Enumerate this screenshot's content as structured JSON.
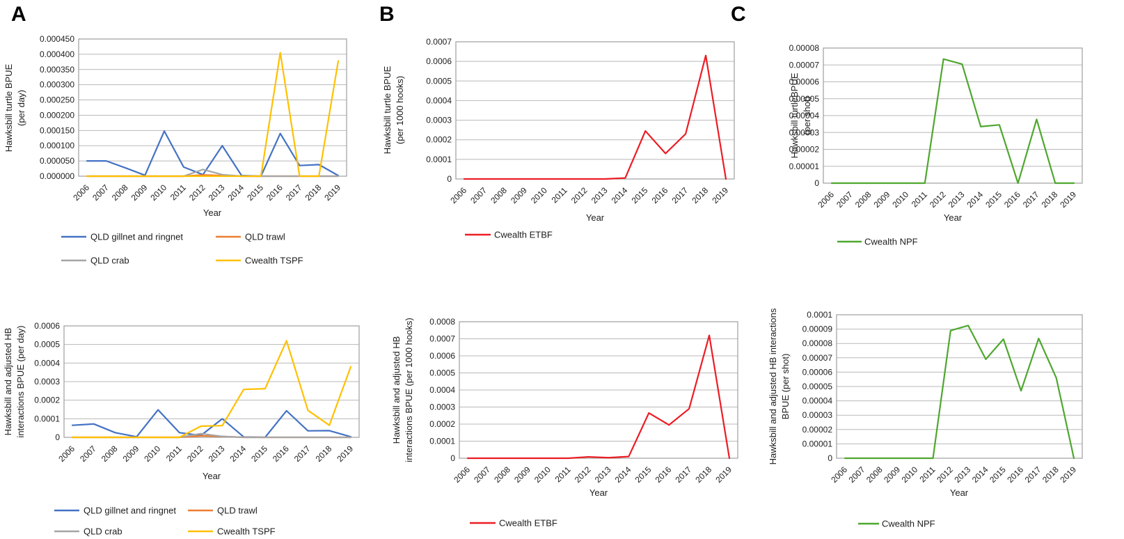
{
  "panel_labels": [
    "A",
    "B",
    "C"
  ],
  "colors": {
    "qld_gillnet_blue": "#4472C4",
    "qld_trawl_orange": "#ED7D31",
    "qld_crab_gray": "#A5A5A5",
    "cwealth_tspf_yellow": "#FFC000",
    "cwealth_etbf_red": "#EC1C24",
    "cwealth_npf_green": "#4EA72E",
    "gridline": "#b8b8b8",
    "plot_border": "#9e9e9e",
    "text": "#1c1c1c"
  },
  "chart_data": [
    {
      "id": "a-top",
      "panel": "A",
      "type": "line",
      "ylabel_lines": [
        "Hawksbill turtle BPUE",
        "(per day)"
      ],
      "xlabel": "Year",
      "categories": [
        "2006",
        "2007",
        "2008",
        "2009",
        "2010",
        "2011",
        "2012",
        "2013",
        "2014",
        "2015",
        "2016",
        "2017",
        "2018",
        "2019"
      ],
      "ylim": [
        0,
        0.00045
      ],
      "ytick_labels": [
        "0.000450",
        "0.000400",
        "0.000350",
        "0.000300",
        "0.000250",
        "0.000200",
        "0.000150",
        "0.000100",
        "0.000050",
        "0.000000"
      ],
      "grid": true,
      "legend_position": "bottom",
      "series": [
        {
          "name": "QLD gillnet and ringnet",
          "color": "#4472C4",
          "values": [
            5e-05,
            5e-05,
            2.7e-05,
            3e-06,
            0.000148,
            3e-05,
            5e-06,
            0.0001,
            2e-06,
            0,
            0.00014,
            3.5e-05,
            3.8e-05,
            2e-06
          ]
        },
        {
          "name": "QLD trawl",
          "color": "#ED7D31",
          "values": [
            0,
            0,
            0,
            0,
            0,
            0,
            4e-06,
            2e-06,
            0,
            0,
            0,
            0,
            0,
            0
          ]
        },
        {
          "name": "QLD crab",
          "color": "#A5A5A5",
          "values": [
            0,
            0,
            0,
            0,
            0,
            0,
            2.2e-05,
            5e-06,
            0,
            0,
            0,
            0,
            0,
            0
          ]
        },
        {
          "name": "Cwealth TSPF",
          "color": "#FFC000",
          "values": [
            0,
            0,
            0,
            0,
            0,
            0,
            0,
            0,
            0,
            0,
            0.000405,
            0,
            0,
            0.000378
          ]
        }
      ]
    },
    {
      "id": "a-bottom",
      "panel": "A",
      "type": "line",
      "ylabel_lines": [
        "Hawksbill and adjusted HB",
        "interactions BPUE (per day)"
      ],
      "xlabel": "Year",
      "categories": [
        "2006",
        "2007",
        "2008",
        "2009",
        "2010",
        "2011",
        "2012",
        "2013",
        "2014",
        "2015",
        "2016",
        "2017",
        "2018",
        "2019"
      ],
      "ylim": [
        0,
        0.0006
      ],
      "ytick_labels": [
        "0.0006",
        "0.0005",
        "0.0004",
        "0.0003",
        "0.0002",
        "0.0001",
        "0"
      ],
      "grid": true,
      "legend_position": "bottom",
      "series": [
        {
          "name": "QLD gillnet and ringnet",
          "color": "#4472C4",
          "values": [
            6.5e-05,
            7.2e-05,
            2.5e-05,
            3e-06,
            0.000148,
            2.5e-05,
            1e-05,
            0.0001,
            2e-06,
            0,
            0.000143,
            3.5e-05,
            3.6e-05,
            3e-06
          ]
        },
        {
          "name": "QLD trawl",
          "color": "#ED7D31",
          "values": [
            0,
            0,
            0,
            0,
            0,
            0,
            8e-06,
            5e-06,
            0,
            0,
            0,
            0,
            0,
            0
          ]
        },
        {
          "name": "QLD crab",
          "color": "#A5A5A5",
          "values": [
            0,
            0,
            0,
            0,
            0,
            0,
            2e-05,
            5e-06,
            0,
            0,
            0,
            0,
            0,
            0
          ]
        },
        {
          "name": "Cwealth TSPF",
          "color": "#FFC000",
          "values": [
            0,
            0,
            0,
            0,
            0,
            0,
            6e-05,
            6.3e-05,
            0.000258,
            0.000262,
            0.00052,
            0.000145,
            6.5e-05,
            0.00038
          ]
        }
      ]
    },
    {
      "id": "b-top",
      "panel": "B",
      "type": "line",
      "ylabel_lines": [
        "Hawksbill turtle BPUE",
        "(per 1000 hooks)"
      ],
      "xlabel": "Year",
      "categories": [
        "2006",
        "2007",
        "2008",
        "2009",
        "2010",
        "2011",
        "2012",
        "2013",
        "2014",
        "2015",
        "2016",
        "2017",
        "2018",
        "2019"
      ],
      "ylim": [
        0,
        0.0007
      ],
      "ytick_labels": [
        "0.0007",
        "0.0006",
        "0.0005",
        "0.0004",
        "0.0003",
        "0.0002",
        "0.0001",
        "0"
      ],
      "grid": true,
      "legend_position": "bottom",
      "series": [
        {
          "name": "Cwealth ETBF",
          "color": "#EC1C24",
          "values": [
            0,
            0,
            0,
            0,
            0,
            0,
            0,
            0,
            5e-06,
            0.000245,
            0.00013,
            0.00023,
            0.00063,
            0
          ]
        }
      ]
    },
    {
      "id": "b-bottom",
      "panel": "B",
      "type": "line",
      "ylabel_lines": [
        "Hawksbill and adjusted HB",
        "interactions BPUE (per 1000 hooks)"
      ],
      "xlabel": "Year",
      "categories": [
        "2006",
        "2007",
        "2008",
        "2009",
        "2010",
        "2011",
        "2012",
        "2013",
        "2014",
        "2015",
        "2016",
        "2017",
        "2018",
        "2019"
      ],
      "ylim": [
        0,
        0.0008
      ],
      "ytick_labels": [
        "0.0008",
        "0.0007",
        "0.0006",
        "0.0005",
        "0.0004",
        "0.0003",
        "0.0002",
        "0.0001",
        "0"
      ],
      "grid": true,
      "legend_position": "bottom",
      "series": [
        {
          "name": "Cwealth ETBF",
          "color": "#EC1C24",
          "values": [
            0,
            0,
            0,
            0,
            0,
            0,
            8e-06,
            3e-06,
            1e-05,
            0.000265,
            0.000195,
            0.00029,
            0.00072,
            0
          ]
        }
      ]
    },
    {
      "id": "c-top",
      "panel": "C",
      "type": "line",
      "ylabel_lines": [
        "Hawksbill turtleBPUE",
        "(per shot)"
      ],
      "xlabel": "Year",
      "categories": [
        "2006",
        "2007",
        "2008",
        "2009",
        "2010",
        "2011",
        "2012",
        "2013",
        "2014",
        "2015",
        "2016",
        "2017",
        "2018",
        "2019"
      ],
      "ylim": [
        0,
        8e-05
      ],
      "ytick_labels": [
        "0.00008",
        "0.00007",
        "0.00006",
        "0.00005",
        "0.00004",
        "0.00003",
        "0.00002",
        "0.00001",
        "0"
      ],
      "grid": true,
      "legend_position": "bottom",
      "series": [
        {
          "name": "Cwealth NPF",
          "color": "#4EA72E",
          "values": [
            0,
            0,
            0,
            0,
            0,
            0,
            7.35e-05,
            7.05e-05,
            3.35e-05,
            3.45e-05,
            0,
            3.78e-05,
            0,
            0
          ]
        }
      ]
    },
    {
      "id": "c-bottom",
      "panel": "C",
      "type": "line",
      "ylabel_lines": [
        "Hawksbill and adjusted HB interactions",
        "BPUE (per shot)"
      ],
      "xlabel": "Year",
      "categories": [
        "2006",
        "2007",
        "2008",
        "2009",
        "2010",
        "2011",
        "2012",
        "2013",
        "2014",
        "2015",
        "2016",
        "2017",
        "2018",
        "2019"
      ],
      "ylim": [
        0,
        0.0001
      ],
      "ytick_labels": [
        "0.0001",
        "0.00009",
        "0.00008",
        "0.00007",
        "0.00006",
        "0.00005",
        "0.00004",
        "0.00003",
        "0.00002",
        "0.00001",
        "0"
      ],
      "grid": true,
      "legend_position": "bottom",
      "series": [
        {
          "name": "Cwealth NPF",
          "color": "#4EA72E",
          "values": [
            0,
            0,
            0,
            0,
            0,
            0,
            8.9e-05,
            9.25e-05,
            6.9e-05,
            8.3e-05,
            4.7e-05,
            8.35e-05,
            5.6e-05,
            0
          ]
        }
      ]
    }
  ]
}
